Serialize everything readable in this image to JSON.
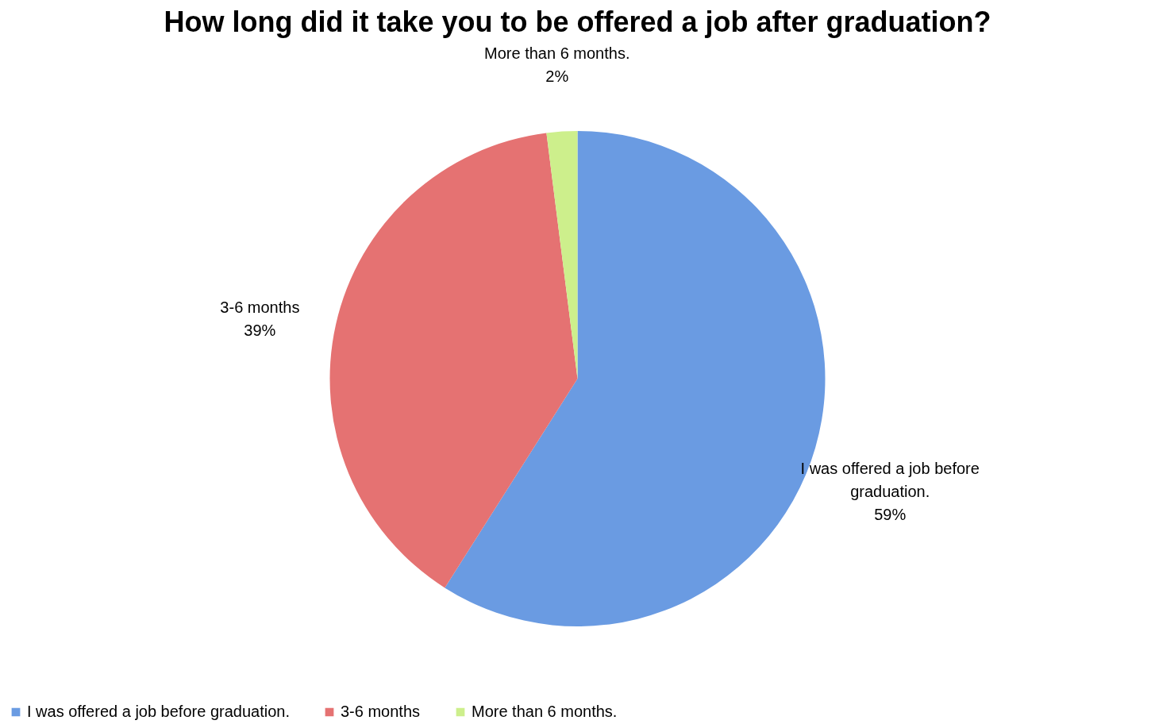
{
  "chart_data": {
    "type": "pie",
    "title": "How long did it take you to be offered a job after graduation?",
    "categories": [
      "I was offered a job before graduation.",
      "3-6 months",
      "More than 6 months."
    ],
    "values": [
      59,
      39,
      2
    ],
    "value_labels": [
      "59%",
      "39%",
      "2%"
    ],
    "colors": [
      "#6a9be2",
      "#e57272",
      "#cdef8c"
    ],
    "legend": "bottom"
  }
}
